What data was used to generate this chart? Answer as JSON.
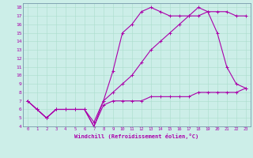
{
  "xlabel": "Windchill (Refroidissement éolien,°C)",
  "bg_color": "#cceee8",
  "grid_color": "#aaddcc",
  "line_color": "#aa00aa",
  "xlim": [
    -0.5,
    23.5
  ],
  "ylim": [
    4,
    18.5
  ],
  "xticks": [
    0,
    1,
    2,
    3,
    4,
    5,
    6,
    7,
    8,
    9,
    10,
    11,
    12,
    13,
    14,
    15,
    16,
    17,
    18,
    19,
    20,
    21,
    22,
    23
  ],
  "yticks": [
    4,
    5,
    6,
    7,
    8,
    9,
    10,
    11,
    12,
    13,
    14,
    15,
    16,
    17,
    18
  ],
  "line1_x": [
    0,
    1,
    2,
    3,
    4,
    5,
    6,
    7,
    8,
    9,
    10,
    11,
    12,
    13,
    14,
    15,
    16,
    17,
    18,
    19,
    20,
    21,
    22,
    23
  ],
  "line1_y": [
    7,
    6,
    5,
    6,
    6,
    6,
    6,
    4,
    6.5,
    7,
    7,
    7,
    7,
    7.5,
    7.5,
    7.5,
    7.5,
    7.5,
    8,
    8,
    8,
    8,
    8,
    8.5
  ],
  "line2_x": [
    0,
    1,
    2,
    3,
    4,
    5,
    6,
    7,
    8,
    9,
    10,
    11,
    12,
    13,
    14,
    15,
    16,
    17,
    18,
    19,
    20,
    21,
    22,
    23
  ],
  "line2_y": [
    7,
    6,
    5,
    6,
    6,
    6,
    6,
    4,
    7,
    10.5,
    15,
    16,
    17.5,
    18,
    17.5,
    17,
    17,
    17,
    18,
    17.5,
    15,
    11,
    9,
    8.5
  ],
  "line3_x": [
    0,
    1,
    2,
    3,
    4,
    5,
    6,
    7,
    8,
    9,
    10,
    11,
    12,
    13,
    14,
    15,
    16,
    17,
    18,
    19,
    20,
    21,
    22,
    23
  ],
  "line3_y": [
    7,
    6,
    5,
    6,
    6,
    6,
    6,
    4.5,
    7,
    8,
    9,
    10,
    11.5,
    13,
    14,
    15,
    16,
    17,
    17,
    17.5,
    17.5,
    17.5,
    17,
    17
  ]
}
